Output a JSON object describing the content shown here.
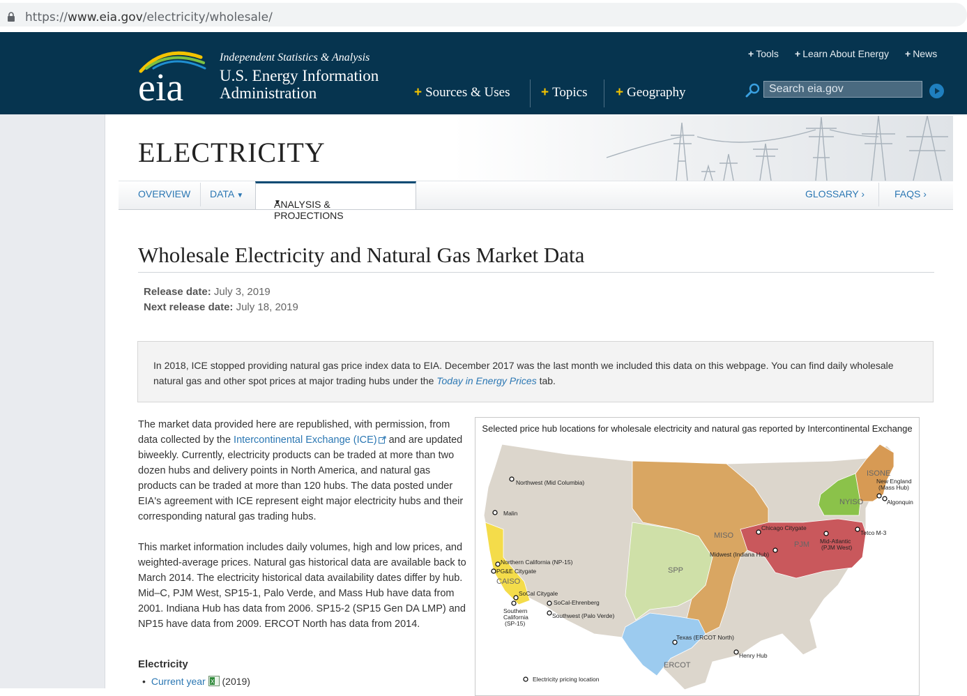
{
  "browser": {
    "url_scheme": "https://",
    "url_host": "www.eia.gov",
    "url_path": "/electricity/wholesale/"
  },
  "header": {
    "logo_text": "eia",
    "tagline": "Independent Statistics & Analysis",
    "agency_line1": "U.S. Energy Information",
    "agency_line2": "Administration",
    "utility_links": [
      "Tools",
      "Learn About Energy",
      "News"
    ],
    "main_nav": [
      "Sources & Uses",
      "Topics",
      "Geography"
    ],
    "search_placeholder": "Search eia.gov"
  },
  "section": {
    "title": "ELECTRICITY",
    "tabs": [
      "OVERVIEW",
      "DATA",
      "ANALYSIS & PROJECTIONS"
    ],
    "right_links": [
      "GLOSSARY ›",
      "FAQS ›"
    ]
  },
  "content": {
    "title": "Wholesale Electricity and Natural Gas Market Data",
    "release_label": "Release date:",
    "release_value": "July 3, 2019",
    "next_release_label": "Next release date:",
    "next_release_value": "July 18, 2019",
    "notice_before": "In 2018, ICE stopped providing natural gas price index data to EIA. December 2017 was the last month we included this data on this webpage. You can find daily wholesale natural gas and other spot prices at major trading hubs under the",
    "notice_link": "Today in Energy Prices",
    "notice_after": "tab.",
    "para1_before": "The market data provided here are republished, with permission, from data collected by the",
    "para1_link": "Intercontinental Exchange (ICE)",
    "para1_after": "and are updated biweekly. Currently, electricity products can be traded at more than two dozen hubs and delivery points in North America, and natural gas products can be traded at more than 120 hubs. The data posted under EIA's agreement with ICE represent eight major electricity hubs and their corresponding natural gas trading hubs.",
    "para2": "This market information includes daily volumes, high and low prices, and weighted-average prices. Natural gas historical data are available back to March 2014. The electricity historical data availability dates differ by hub. Mid–C, PJM West, SP15-1, Palo Verde, and Mass Hub have data from 2001. Indiana Hub has data from 2006. SP15-2 (SP15 Gen DA LMP) and NP15 have data from 2009. ERCOT North has data from 2014.",
    "electricity_heading": "Electricity",
    "bullet_link": "Current year",
    "bullet_suffix": "(2019)"
  },
  "map": {
    "caption": "Selected price hub locations for wholesale electricity and natural gas reported by Intercontinental Exchange",
    "regions": {
      "caiso": "CAISO",
      "spp": "SPP",
      "miso": "MISO",
      "ercot": "ERCOT",
      "pjm": "PJM",
      "nyiso": "NYISO",
      "isone": "ISONE"
    },
    "hubs": {
      "northwest": "Northwest (Mid Columbia)",
      "malin": "Malin",
      "np15": "Northern California (NP-15)",
      "pge": "PG&E Citygate",
      "socal_citygate": "SoCal Citygale",
      "socal_ehrenberg": "SoCal-Ehrenberg",
      "southwest": "Southwest (Palo Verde)",
      "sp15_l1": "Southern",
      "sp15_l2": "California",
      "sp15_l3": "(SP-15)",
      "texas": "Texas (ERCOT North)",
      "henry": "Henry Hub",
      "chicago": "Chicago Citygate",
      "midwest": "Midwest (Indiana Hub)",
      "midatl_l1": "Mid-Atlantic",
      "midatl_l2": "(PJM West)",
      "tetco": "Tetco M-3",
      "ne_l1": "New England",
      "ne_l2": "(Mass Hub)",
      "algonquin": "Algonquin"
    },
    "legend_electricity": "Electricity pricing location"
  },
  "colors": {
    "header_bg": "#06344f",
    "accent_yellow": "#f3c300",
    "link": "#2b77b3",
    "region_gray": "#dcd6cc",
    "miso": "#d9a662",
    "spp": "#cfe0a8",
    "ercot": "#9ccbef",
    "pjm": "#c9585c",
    "nyiso": "#8bc24a",
    "isone": "#d79a54",
    "caiso": "#f4dc4a"
  }
}
